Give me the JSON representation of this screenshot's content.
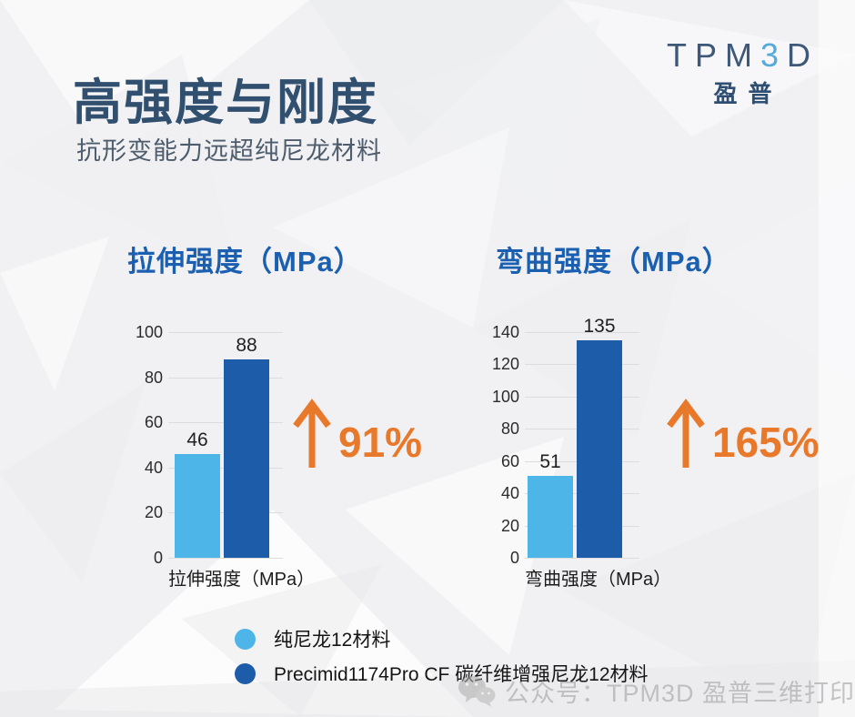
{
  "header": {
    "title": "高强度与刚度",
    "subtitle": "抗形变能力远超纯尼龙材料"
  },
  "logo": {
    "brand_prefix": "TPM",
    "brand_highlight": "3",
    "brand_suffix": "D",
    "subtext": "盈普"
  },
  "colors": {
    "title_navy": "#31506F",
    "chart_title_blue": "#1A5FB0",
    "accent_orange": "#E8782A",
    "bar_light_blue": "#4DB5E8",
    "bar_dark_blue": "#1C5CA8",
    "gridline_gray": "#DBDCDE",
    "watermark_gray": "#9B9B9B"
  },
  "chart_data": [
    {
      "type": "bar",
      "title": "拉伸强度（MPa）",
      "xlabel": "拉伸强度（MPa）",
      "categories": [
        "拉伸强度（MPa）"
      ],
      "ylim": [
        0,
        100
      ],
      "yticks": [
        0,
        20,
        40,
        60,
        80,
        100
      ],
      "grid": true,
      "legend_position": "bottom",
      "series": [
        {
          "name": "纯尼龙12材料",
          "values": [
            46
          ],
          "color": "#4DB5E8"
        },
        {
          "name": "Precimid1174Pro CF 碳纤维增强尼龙12材料",
          "values": [
            88
          ],
          "color": "#1C5CA8"
        }
      ],
      "annotation": {
        "direction": "up",
        "text": "91%"
      }
    },
    {
      "type": "bar",
      "title": "弯曲强度（MPa）",
      "xlabel": "弯曲强度（MPa）",
      "categories": [
        "弯曲强度（MPa）"
      ],
      "ylim": [
        0,
        140
      ],
      "yticks": [
        0,
        20,
        40,
        60,
        80,
        100,
        120,
        140
      ],
      "grid": true,
      "legend_position": "bottom",
      "series": [
        {
          "name": "纯尼龙12材料",
          "values": [
            51
          ],
          "color": "#4DB5E8"
        },
        {
          "name": "Precimid1174Pro CF 碳纤维增强尼龙12材料",
          "values": [
            135
          ],
          "color": "#1C5CA8"
        }
      ],
      "annotation": {
        "direction": "up",
        "text": "165%"
      }
    }
  ],
  "legend": {
    "items": [
      {
        "label": "纯尼龙12材料",
        "color": "#4DB5E8"
      },
      {
        "label": "Precimid1174Pro CF 碳纤维增强尼龙12材料",
        "color": "#1C5CA8"
      }
    ]
  },
  "watermark": {
    "icon": "wechat-icon",
    "text": "公众号：TPM3D 盈普三维打印"
  }
}
